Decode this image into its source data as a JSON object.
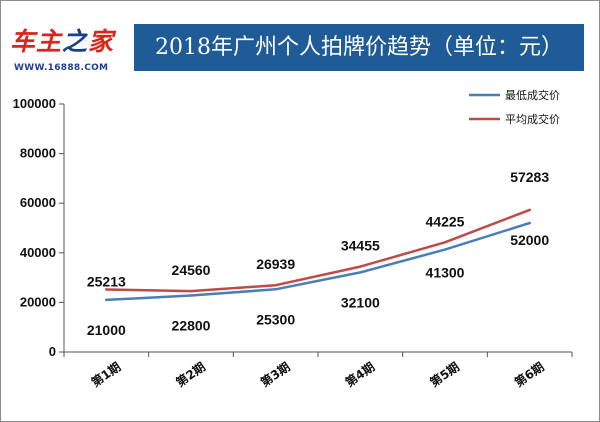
{
  "header": {
    "logo_main": "车主之家",
    "logo_url": "WWW.16888.COM",
    "title": "2018年广州个人拍牌价趋势（单位：元）"
  },
  "chart_data": {
    "type": "line",
    "title": "2018年广州个人拍牌价趋势（单位：元）",
    "categories": [
      "第1期",
      "第2期",
      "第3期",
      "第4期",
      "第5期",
      "第6期"
    ],
    "series": [
      {
        "name": "最低成交价",
        "color": "#4a7ebb",
        "values": [
          21000,
          22800,
          25300,
          32100,
          41300,
          52000
        ]
      },
      {
        "name": "平均成交价",
        "color": "#be4b48",
        "values": [
          25213,
          24560,
          26939,
          34455,
          44225,
          57283
        ]
      }
    ],
    "ylim": [
      0,
      100000
    ],
    "yticks": [
      "0",
      "20000",
      "40000",
      "60000",
      "80000",
      "100000"
    ],
    "grid": false,
    "legend": "top-right",
    "xlabel": "",
    "ylabel": ""
  }
}
